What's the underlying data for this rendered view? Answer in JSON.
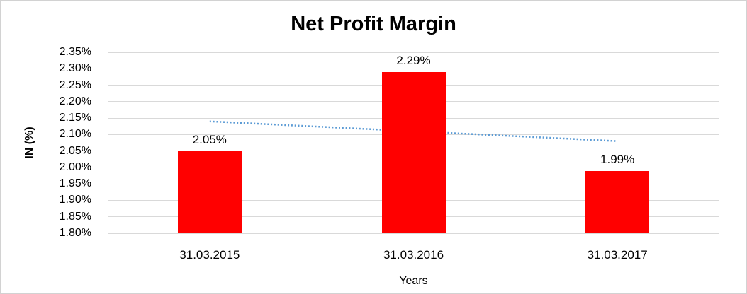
{
  "chart_data": {
    "type": "bar",
    "title": "Net Profit Margin",
    "xlabel": "Years",
    "ylabel": "IN (%)",
    "categories": [
      "31.03.2015",
      "31.03.2016",
      "31.03.2017"
    ],
    "values": [
      2.05,
      2.29,
      1.99
    ],
    "data_labels": [
      "2.05%",
      "2.29%",
      "1.99%"
    ],
    "ylim": [
      1.8,
      2.35
    ],
    "ytick_step": 0.05,
    "ytick_labels": [
      "2.35%",
      "2.30%",
      "2.25%",
      "2.20%",
      "2.15%",
      "2.10%",
      "2.05%",
      "2.00%",
      "1.95%",
      "1.90%",
      "1.85%",
      "1.80%"
    ],
    "grid": true,
    "legend": "none",
    "colors": {
      "bar": "#FF0000",
      "trendline": "#5B9BD5",
      "gridline": "#D9D9D9",
      "text": "#000000",
      "chart_border": "#D2D2D2"
    },
    "trendline": {
      "shape": "linear",
      "style": "dotted",
      "start_value": 2.14,
      "end_value": 2.08
    }
  }
}
